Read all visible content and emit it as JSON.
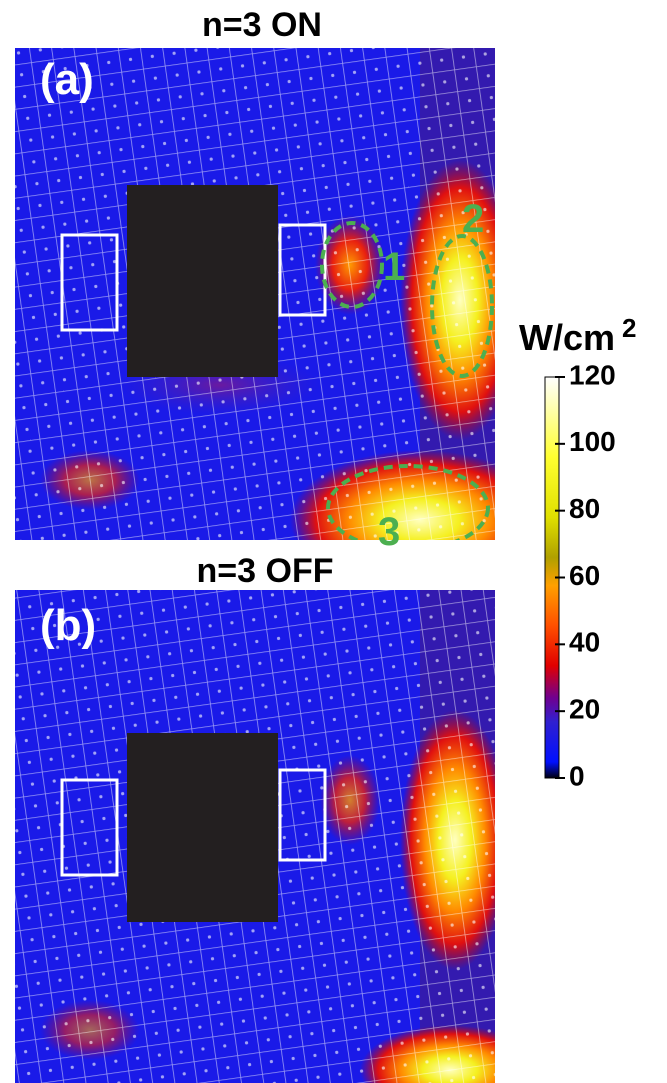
{
  "panels": [
    {
      "label": "(a)",
      "title": "n=3 ON",
      "annotations": [
        "1",
        "2",
        "3"
      ]
    },
    {
      "label": "(b)",
      "title": "n=3 OFF"
    }
  ],
  "colorbar": {
    "label": "W/cm",
    "label_sup": "2",
    "lim": [
      0,
      120
    ],
    "ticks": [
      0,
      20,
      40,
      60,
      80,
      100,
      120
    ]
  }
}
